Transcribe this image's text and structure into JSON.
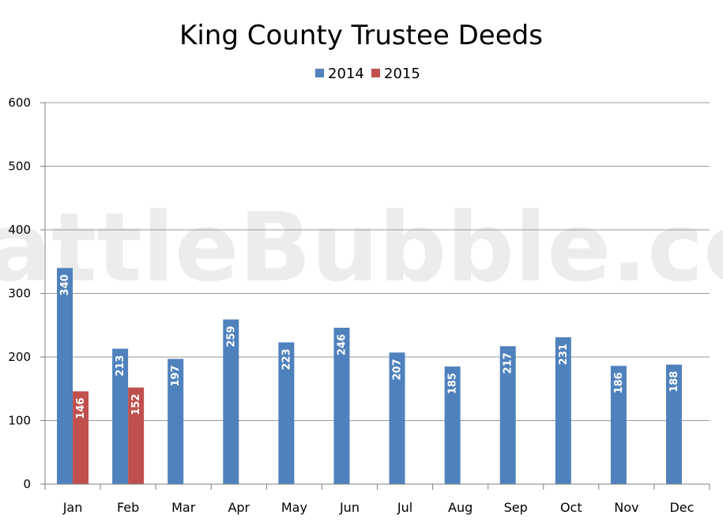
{
  "chart_data": {
    "type": "bar",
    "title": "King County Trustee Deeds",
    "watermark": "SeattleBubble.com",
    "categories": [
      "Jan",
      "Feb",
      "Mar",
      "Apr",
      "May",
      "Jun",
      "Jul",
      "Aug",
      "Sep",
      "Oct",
      "Nov",
      "Dec"
    ],
    "series": [
      {
        "name": "2014",
        "color": "#4F81BD",
        "values": [
          340,
          213,
          197,
          259,
          223,
          246,
          207,
          185,
          217,
          231,
          186,
          188
        ]
      },
      {
        "name": "2015",
        "color": "#C0504D",
        "values": [
          146,
          152,
          null,
          null,
          null,
          null,
          null,
          null,
          null,
          null,
          null,
          null
        ]
      }
    ],
    "ylim": [
      0,
      600
    ],
    "yticks": [
      0,
      100,
      200,
      300,
      400,
      500,
      600
    ],
    "grid": true,
    "legend_position": "top",
    "data_labels": true
  }
}
